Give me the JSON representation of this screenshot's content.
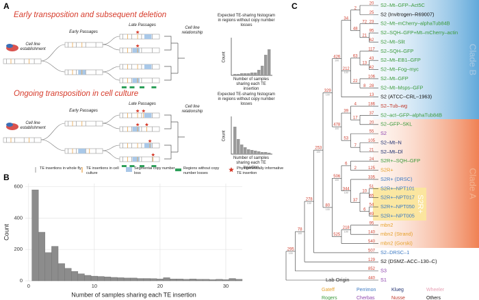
{
  "panel_a": {
    "label": "A",
    "scenarios": [
      {
        "title": "Early transposition and subsequent deletion",
        "establishment": "Cell line establishment",
        "early": "Early Passages",
        "late": "Late Passages",
        "relationship": "Cell line relationship",
        "expected": "Expected TE-sharing histogram in regions without copy number losses",
        "y_label": "Count",
        "x_label": "Number of samples sharing each TE insertion"
      },
      {
        "title": "Ongoing transposition in cell culture",
        "establishment": "Cell line establishment",
        "early": "Early Passages",
        "late": "Late Passages",
        "relationship": "Cell line relationship",
        "expected": "Expected TE-sharing histogram in regions without copy number losses",
        "y_label": "Count",
        "x_label": "Number of samples sharing each TE insertion"
      }
    ],
    "legend": [
      "TE insertions in whole fly",
      "TE insertions in cell culture",
      "Segmental copy number loss",
      "Regions without copy number losses",
      "Phylogenetically informative TE insertion"
    ]
  },
  "chart_data": {
    "type": "histogram",
    "panel_label": "B",
    "x_label": "Number of samples sharing each TE insertion",
    "y_label": "Count",
    "bins": [
      0.5,
      1.5,
      2.5,
      3.5,
      4.5,
      5.5,
      6.5,
      7.5,
      8.5,
      9.5,
      10.5,
      11.5,
      12.5,
      13.5,
      14.5,
      15.5,
      16.5,
      17.5,
      18.5,
      19.5,
      20.5,
      21.5,
      22.5,
      23.5,
      24.5,
      25.5,
      26.5,
      27.5,
      28.5,
      29.5,
      30.5,
      31.5,
      32.5
    ],
    "counts": [
      580,
      310,
      180,
      220,
      110,
      80,
      60,
      45,
      35,
      30,
      28,
      25,
      22,
      20,
      18,
      18,
      15,
      15,
      14,
      12,
      20,
      12,
      12,
      10,
      12,
      10,
      10,
      8,
      10,
      8,
      15,
      10
    ],
    "color": "#8c8c8c",
    "xlim": [
      -0.5,
      32.5
    ],
    "ylim": [
      0,
      620
    ],
    "xticks": [
      0,
      10,
      20,
      30
    ],
    "yticks": [
      0,
      200,
      400,
      600
    ],
    "grid": true
  },
  "tree": {
    "panel_label": "C",
    "clades": [
      "Clade B",
      "Clade A",
      "S2R+"
    ],
    "legend_title": "Lab Origin",
    "labs": [
      {
        "name": "Gateff",
        "color": "#e6a02a"
      },
      {
        "name": "Perrimon",
        "color": "#3b78c2"
      },
      {
        "name": "Klueg",
        "color": "#1f3070"
      },
      {
        "name": "Wheeler",
        "color": "#e7a0b4"
      },
      {
        "name": "Rogers",
        "color": "#3a9a3a"
      },
      {
        "name": "Cherbas",
        "color": "#8e44ad"
      },
      {
        "name": "Nusse",
        "color": "#c0392b"
      },
      {
        "name": "Others",
        "color": "#111111"
      }
    ],
    "root": {
      "children": [
        {
          "label": "295",
          "sub": "100",
          "children": [
            {
              "label": "78",
              "sub": "100",
              "children": [
                {
                  "label": "278",
                  "sub": "100",
                  "children": [
                    {
                      "label": "253",
                      "sub": "100",
                      "children": [
                        {
                          "label": "329",
                          "sub": "100",
                          "children": [
                            {
                              "label": "426",
                              "sub": "100",
                              "children": [
                                {
                                  "label": "34",
                                  "children": [
                                    {
                                      "label": "2",
                                      "children": [
                                        {
                                          "name": "S2–Mt–GFP–Act5C",
                                          "color": "#3a9a3a",
                                          "label": "20"
                                        },
                                        {
                                          "name": "S2 (Invitrogen–R69007)",
                                          "color": "#111111",
                                          "label": "25"
                                        }
                                      ]
                                    },
                                    {
                                      "label": "48",
                                      "children": [
                                        {
                                          "label": "72",
                                          "children": [
                                            {
                                              "name": "S2–Mt–mCherry–alphaTub84B",
                                              "color": "#3a9a3a",
                                              "label": "23"
                                            }
                                          ]
                                        },
                                        {
                                          "label": "21",
                                          "children": [
                                            {
                                              "name": "S2–SQH–GFP+Mt–mCherry–actin",
                                              "color": "#3a9a3a",
                                              "label": "95"
                                            },
                                            {
                                              "name": "S2–Mt–Slit",
                                              "color": "#3a9a3a",
                                              "label": "62"
                                            }
                                          ]
                                        }
                                      ]
                                    }
                                  ]
                                },
                                {
                                  "label": "212",
                                  "sub": "100",
                                  "children": [
                                    {
                                      "label": "63",
                                      "children": [
                                        {
                                          "name": "S2–SQH–GFP",
                                          "color": "#3a9a3a",
                                          "label": "117"
                                        },
                                        {
                                          "label": "13",
                                          "children": [
                                            {
                                              "name": "S2–Mt–EB1–GFP",
                                              "color": "#3a9a3a",
                                              "label": "43"
                                            },
                                            {
                                              "name": "S2–Mt–Fog–myc",
                                              "color": "#3a9a3a",
                                              "label": "42"
                                            }
                                          ]
                                        }
                                      ]
                                    },
                                    {
                                      "label": "22",
                                      "children": [
                                        {
                                          "name": "S2–Mt–GFP",
                                          "color": "#3a9a3a",
                                          "label": "106"
                                        },
                                        {
                                          "label": "8",
                                          "children": [
                                            {
                                              "name": "S2–Mt–Msps–GFP",
                                              "color": "#3a9a3a",
                                              "label": "28"
                                            }
                                          ]
                                        }
                                      ]
                                    }
                                  ]
                                },
                                {
                                  "name": "S2 (ATCC–CRL–1963)",
                                  "color": "#111111",
                                  "label": "13"
                                }
                              ]
                            },
                            {
                              "label": "478",
                              "sub": "100",
                              "children": [
                                {
                                  "label": "39",
                                  "children": [
                                    {
                                      "label": "4",
                                      "children": [
                                        {
                                          "name": "S2–Tub–wg",
                                          "color": "#c0392b",
                                          "label": "186"
                                        }
                                      ]
                                    },
                                    {
                                      "label": "17",
                                      "children": [
                                        {
                                          "name": "S2–act–GFP–alphaTub84B",
                                          "color": "#3a9a3a",
                                          "label": "37"
                                        },
                                        {
                                          "name": "S2–GFP–SKL",
                                          "color": "#3a9a3a",
                                          "label": "20"
                                        }
                                      ]
                                    }
                                  ]
                                },
                                {
                                  "label": "53",
                                  "children": [
                                    {
                                      "name": "S2",
                                      "color": "#8e44ad",
                                      "label": "55"
                                    },
                                    {
                                      "label": "7",
                                      "children": [
                                        {
                                          "name": "S2–Mt–N",
                                          "color": "#1f3070",
                                          "label": "105"
                                        },
                                        {
                                          "name": "S2–Mt–Dl",
                                          "color": "#1f3070",
                                          "label": "21"
                                        }
                                      ]
                                    }
                                  ]
                                }
                              ]
                            }
                          ]
                        },
                        {
                          "label": "80",
                          "sub": "100",
                          "children": [
                            {
                              "label": "506",
                              "sub": "100",
                              "children": [
                                {
                                  "label": "6",
                                  "children": [
                                    {
                                      "name": "S2R+–SQH–GFP",
                                      "color": "#3a9a3a",
                                      "label": "24"
                                    },
                                    {
                                      "label": "2",
                                      "children": [
                                        {
                                          "name": "S2R+",
                                          "color": "#e6a02a",
                                          "label": "125"
                                        }
                                      ]
                                    }
                                  ]
                                },
                                {
                                  "label": "344",
                                  "sub": "100",
                                  "children": [
                                    {
                                      "name": "S2R+ (DRSC)",
                                      "color": "#3b78c2",
                                      "label": "335"
                                    },
                                    {
                                      "label": "37",
                                      "children": [
                                        {
                                          "label": "10",
                                          "children": [
                                            {
                                              "name": "S2R+–NPT101",
                                              "color": "#3b78c2",
                                              "label": "51"
                                            },
                                            {
                                              "name": "S2R+–NPT017",
                                              "color": "#3b78c2",
                                              "label": "65"
                                            }
                                          ]
                                        },
                                        {
                                          "label": "6",
                                          "children": [
                                            {
                                              "name": "S2R+–NPT050",
                                              "color": "#3b78c2",
                                              "label": "54"
                                            },
                                            {
                                              "name": "S2R+–NPT005",
                                              "color": "#3b78c2",
                                              "label": "49"
                                            }
                                          ]
                                        }
                                      ]
                                    }
                                  ]
                                }
                              ]
                            },
                            {
                              "label": "525",
                              "children": [
                                {
                                  "label": "218",
                                  "sub": "100",
                                  "children": [
                                    {
                                      "name": "mbn2",
                                      "color": "#e6a02a",
                                      "label": "95"
                                    },
                                    {
                                      "name": "mbn2 (Strand)",
                                      "color": "#e6a02a",
                                      "label": "140"
                                    }
                                  ]
                                },
                                {
                                  "name": "mbn2 (Gorski)",
                                  "color": "#e6a02a",
                                  "label": "540"
                                }
                              ]
                            }
                          ]
                        }
                      ]
                    },
                    {
                      "name": "S2–DRSC–1",
                      "color": "#3b78c2",
                      "label": "507"
                    }
                  ]
                },
                {
                  "name": "S2 (DSMZ–ACC–130–C)",
                  "color": "#111111",
                  "label": "129"
                }
              ]
            },
            {
              "name": "S3",
              "color": "#8e44ad",
              "label": "852"
            }
          ]
        },
        {
          "name": "S1",
          "color": "#8e44ad",
          "label": "440"
        }
      ]
    }
  }
}
